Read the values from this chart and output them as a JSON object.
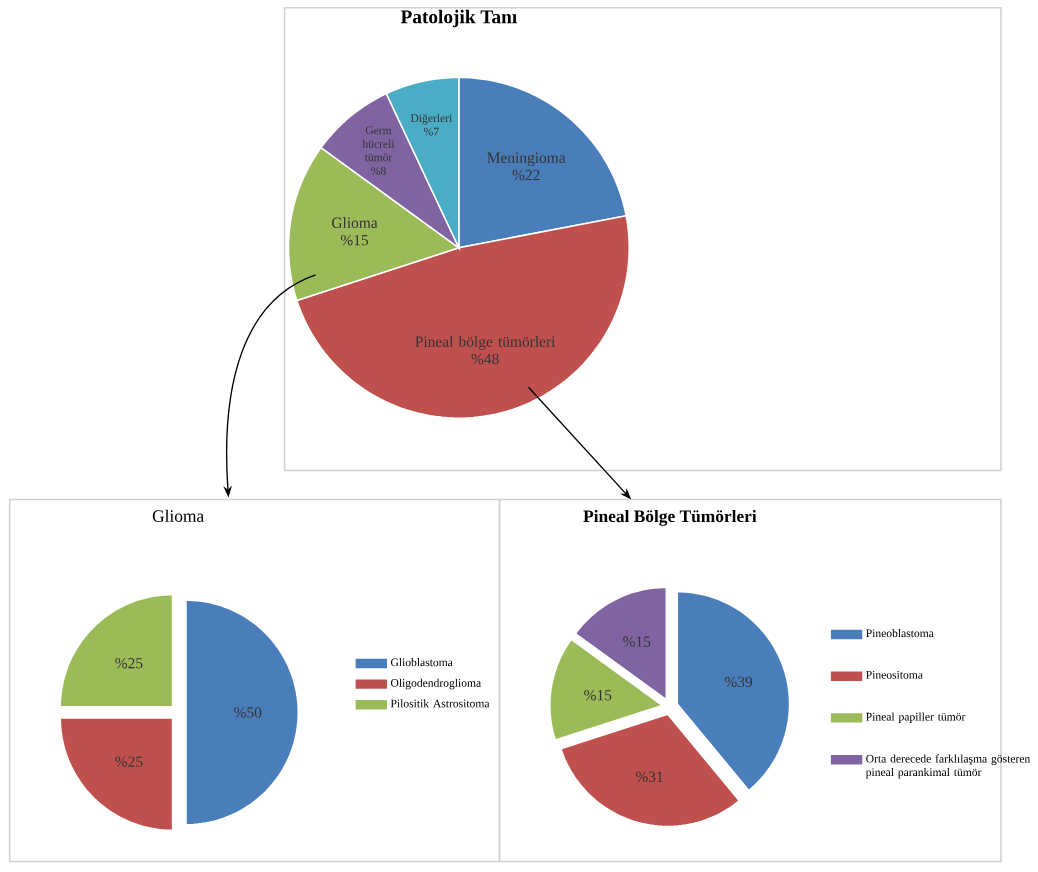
{
  "chart_data": [
    {
      "type": "pie",
      "title": "Patolojik Tanı",
      "categories": [
        "Meningioma",
        "Pineal bölge tümörleri",
        "Glioma",
        "Germ hücreli tümör",
        "Diğerleri"
      ],
      "values": [
        22,
        48,
        15,
        8,
        7
      ],
      "value_labels": [
        "%22",
        "%48",
        "%15",
        "%8",
        "%7"
      ],
      "colors": [
        "#4a7ebb",
        "#c0504d",
        "#9bbb59",
        "#8064a2",
        "#4bacc6"
      ]
    },
    {
      "type": "pie",
      "title": "Glioma",
      "categories": [
        "Glioblastoma",
        "Oligodendroglioma",
        "Pilositik Astrositoma"
      ],
      "values": [
        50,
        25,
        25
      ],
      "value_labels": [
        "%50",
        "%25",
        "%25"
      ],
      "colors": [
        "#4a7ebb",
        "#c0504d",
        "#9bbb59"
      ],
      "legend": "right"
    },
    {
      "type": "pie",
      "title": "Pineal Bölge Tümörleri",
      "categories": [
        "Pineoblastoma",
        "Pineositoma",
        "Pineal papiller tümör",
        "Orta derecede farklılaşma gösteren pineal parankimal tümör"
      ],
      "values": [
        39,
        31,
        15,
        15
      ],
      "value_labels": [
        "%39",
        "%31",
        "%15",
        "%15"
      ],
      "colors": [
        "#4a7ebb",
        "#c0504d",
        "#9bbb59",
        "#8064a2"
      ],
      "legend": "right"
    }
  ]
}
